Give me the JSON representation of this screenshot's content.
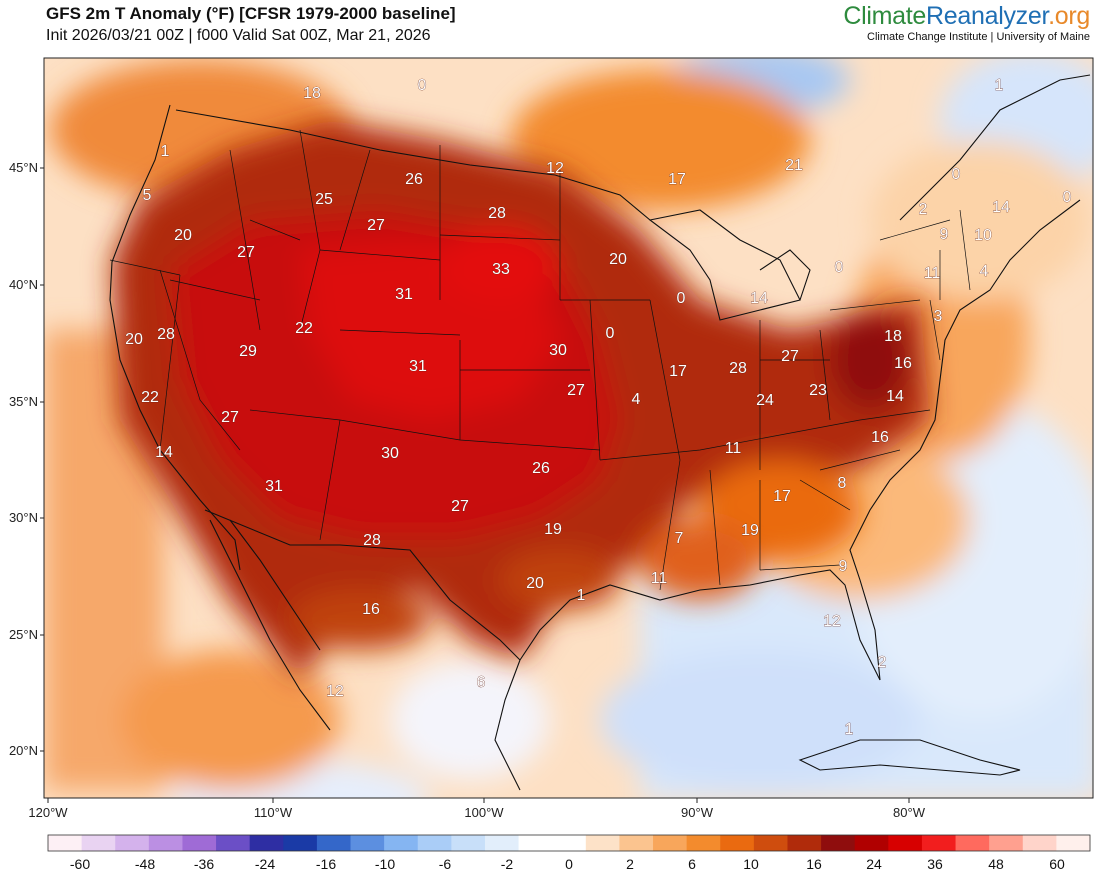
{
  "header": {
    "title": "GFS 2m T Anomaly (°F) [CFSR 1979-2000 baseline]",
    "subtitle": "Init 2026/03/21 00Z | f000 Valid Sat 00Z, Mar 21, 2026"
  },
  "brand": {
    "climate": "Climate",
    "reanalyzer": "Reanalyzer",
    "org": ".org",
    "affiliation": "Climate Change Institute | University of Maine"
  },
  "axes": {
    "lat_labels": [
      "45°N",
      "40°N",
      "35°N",
      "30°N",
      "25°N",
      "20°N"
    ],
    "lon_labels": [
      "120°W",
      "110°W",
      "100°W",
      "90°W",
      "80°W"
    ]
  },
  "map": {
    "region": "contiguous United States",
    "anomaly_labels": [
      "18",
      "0",
      "26",
      "25",
      "27",
      "28",
      "33",
      "31",
      "22",
      "29",
      "20",
      "28",
      "27",
      "20",
      "5",
      "1",
      "22",
      "27",
      "14",
      "31",
      "30",
      "27",
      "30",
      "31",
      "27",
      "26",
      "28",
      "19",
      "20",
      "16",
      "12",
      "6",
      "1",
      "11",
      "7",
      "11",
      "19",
      "17",
      "9",
      "12",
      "2",
      "0",
      "0",
      "4",
      "17",
      "28",
      "27",
      "24",
      "23",
      "18",
      "16",
      "14",
      "16",
      "20",
      "14",
      "21",
      "17",
      "12",
      "8",
      "11",
      "3",
      "9",
      "10",
      "14",
      "4",
      "1",
      "1",
      "2",
      "0",
      "0",
      "0"
    ]
  },
  "colorbar": {
    "ticks": [
      "-60",
      "-48",
      "-36",
      "-24",
      "-16",
      "-10",
      "-6",
      "-2",
      "0",
      "2",
      "6",
      "10",
      "16",
      "24",
      "36",
      "48",
      "60"
    ],
    "colors": [
      "#fdf0f5",
      "#e9d3f2",
      "#d4b2ec",
      "#bb8fe3",
      "#9f6bd6",
      "#6b4fc6",
      "#2e2ea3",
      "#1a3aa6",
      "#3467c9",
      "#5c8fe0",
      "#85b5f2",
      "#aacdf7",
      "#c8dff9",
      "#e2eefb",
      "#ffffff",
      "#ffffff",
      "#fde2c8",
      "#fbc48f",
      "#f8a65b",
      "#f38b2d",
      "#ea6a10",
      "#cf4d0e",
      "#b02b0b",
      "#8f0d0d",
      "#b00000",
      "#d70000",
      "#f21e1e",
      "#ff6a5e",
      "#ffa08f",
      "#ffd4ca",
      "#fff0ec"
    ]
  }
}
